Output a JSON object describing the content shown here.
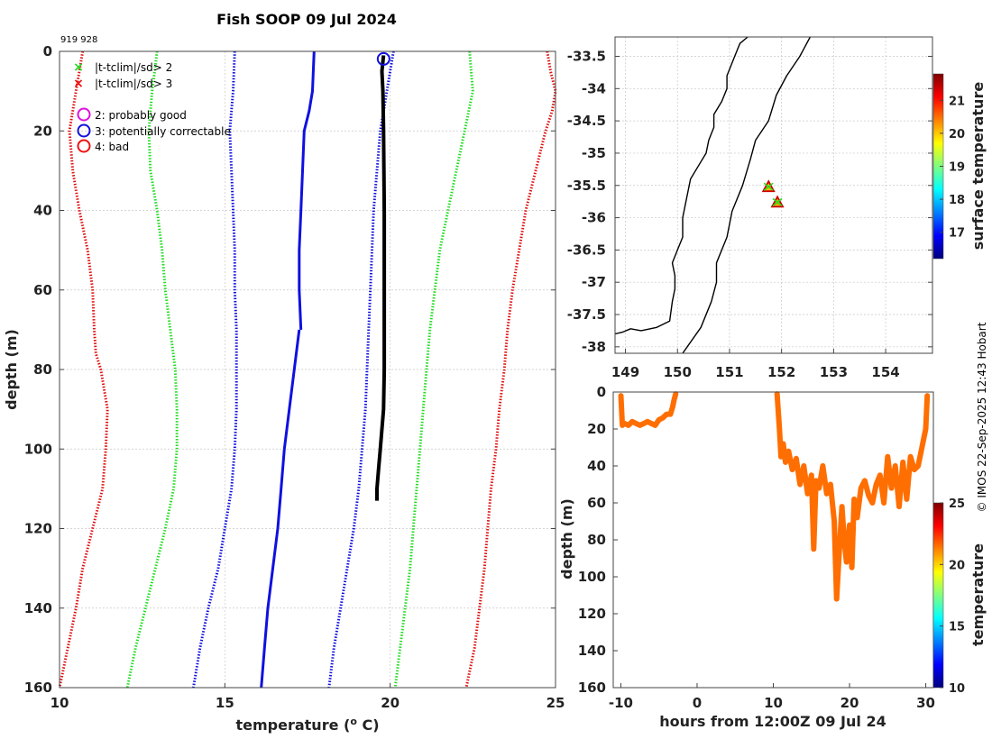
{
  "figure": {
    "title": "Fish SOOP 09 Jul 2024",
    "id_label": "919 928",
    "credit": "© IMOS 22-Sep-2025 12:43 Hobart"
  },
  "legend": {
    "items": [
      {
        "symbol": "x",
        "color": "#22dd22",
        "label": "|t-tclim|/sd> 2"
      },
      {
        "symbol": "x",
        "color": "#ee1111",
        "label": "|t-tclim|/sd> 3"
      },
      {
        "symbol": "o",
        "color": "#dd11dd",
        "label": "2: probably good"
      },
      {
        "symbol": "o",
        "color": "#1111dd",
        "label": "3: potentially correctable"
      },
      {
        "symbol": "o",
        "color": "#ee1111",
        "label": "4: bad"
      }
    ]
  },
  "colors": {
    "red": "#e01010",
    "green": "#22dd22",
    "blue": "#1010e0",
    "black": "#000000",
    "yellow": "#e6f01a",
    "grid": "#c8c8c8",
    "axis": "#444444"
  },
  "chart_data": [
    {
      "type": "line",
      "name": "profile",
      "title": "Fish SOOP 09 Jul 2024",
      "xlabel": "temperature (",
      "xlabel_sup": "o",
      "xlabel_tail": " C)",
      "ylabel": "depth (m)",
      "xlim": [
        10,
        25
      ],
      "ylim": [
        160,
        0
      ],
      "xticks": [
        10,
        15,
        20,
        25
      ],
      "yticks": [
        0,
        20,
        40,
        60,
        80,
        100,
        120,
        140,
        160
      ],
      "grid": true,
      "series": [
        {
          "name": "clim -3sd",
          "style": "dotted",
          "color": "red",
          "depth": [
            0,
            5,
            10,
            20,
            30,
            40,
            50,
            60,
            70,
            76,
            80,
            90,
            100,
            110,
            120,
            130,
            140,
            150,
            160
          ],
          "temp": [
            10.7,
            10.6,
            10.5,
            10.3,
            10.4,
            10.6,
            10.85,
            11.0,
            11.05,
            11.1,
            11.25,
            11.45,
            11.4,
            11.3,
            11.0,
            10.7,
            10.5,
            10.25,
            10.0
          ]
        },
        {
          "name": "clim -2sd",
          "style": "dotted",
          "color": "green",
          "depth": [
            0,
            10,
            20,
            30,
            40,
            50,
            60,
            70,
            80,
            90,
            100,
            110,
            120,
            130,
            140,
            150,
            160
          ],
          "temp": [
            12.95,
            12.8,
            12.7,
            12.75,
            12.95,
            13.1,
            13.2,
            13.35,
            13.5,
            13.55,
            13.55,
            13.45,
            13.2,
            12.9,
            12.6,
            12.3,
            12.05
          ]
        },
        {
          "name": "clim -1sd",
          "style": "dotted",
          "color": "blue",
          "depth": [
            0,
            10,
            20,
            30,
            40,
            50,
            60,
            70,
            80,
            90,
            100,
            110,
            120,
            130,
            140,
            150,
            160
          ],
          "temp": [
            15.3,
            15.25,
            15.15,
            15.2,
            15.25,
            15.3,
            15.3,
            15.35,
            15.35,
            15.35,
            15.3,
            15.2,
            15.0,
            14.8,
            14.5,
            14.25,
            14.05
          ]
        },
        {
          "name": "clim mean",
          "style": "solid",
          "color": "blue",
          "depth": [
            0,
            10,
            15,
            20,
            30,
            40,
            50,
            60,
            70
          ],
          "temp": [
            17.7,
            17.65,
            17.55,
            17.4,
            17.35,
            17.3,
            17.25,
            17.25,
            17.3
          ]
        },
        {
          "name": "clim mean deep",
          "style": "solid",
          "color": "blue",
          "depth": [
            70,
            80,
            90,
            100,
            110,
            120,
            130,
            140,
            150,
            160
          ],
          "temp": [
            17.25,
            17.1,
            16.95,
            16.8,
            16.7,
            16.6,
            16.45,
            16.3,
            16.2,
            16.1
          ]
        },
        {
          "name": "clim +1sd",
          "style": "dotted",
          "color": "blue",
          "depth": [
            0,
            10,
            20,
            30,
            40,
            50,
            60,
            70,
            80,
            90,
            100,
            110,
            120,
            130,
            140,
            150,
            160
          ],
          "temp": [
            20.1,
            19.9,
            19.7,
            19.6,
            19.5,
            19.45,
            19.4,
            19.35,
            19.3,
            19.25,
            19.15,
            19.05,
            18.9,
            18.7,
            18.5,
            18.3,
            18.15
          ]
        },
        {
          "name": "clim +2sd",
          "style": "dotted",
          "color": "green",
          "depth": [
            0,
            5,
            10,
            20,
            30,
            40,
            50,
            60,
            70,
            80,
            90,
            100,
            110,
            120,
            130,
            140,
            150,
            160
          ],
          "temp": [
            22.4,
            22.45,
            22.5,
            22.25,
            22.0,
            21.75,
            21.5,
            21.35,
            21.2,
            21.1,
            21.0,
            20.9,
            20.8,
            20.7,
            20.6,
            20.45,
            20.3,
            20.15
          ]
        },
        {
          "name": "clim +3sd",
          "style": "dotted",
          "color": "red",
          "depth": [
            0,
            5,
            10,
            15,
            20,
            30,
            40,
            50,
            60,
            70,
            80,
            90,
            100,
            110,
            120,
            130,
            140,
            150,
            160
          ],
          "temp": [
            24.75,
            24.85,
            25.0,
            24.9,
            24.7,
            24.4,
            24.1,
            23.9,
            23.7,
            23.55,
            23.45,
            23.3,
            23.2,
            23.05,
            22.95,
            22.85,
            22.7,
            22.55,
            22.3
          ]
        },
        {
          "name": "observed",
          "style": "solid",
          "color": "black",
          "depth": [
            1,
            5,
            10,
            20,
            40,
            60,
            80,
            90,
            92,
            95,
            100,
            105,
            110,
            113
          ],
          "temp": [
            19.8,
            19.75,
            19.78,
            19.8,
            19.82,
            19.82,
            19.82,
            19.8,
            19.78,
            19.75,
            19.7,
            19.65,
            19.6,
            19.6
          ]
        }
      ],
      "flag_markers": [
        {
          "flag": "3: potentially correctable",
          "temp": 19.8,
          "depth": 1
        }
      ]
    },
    {
      "type": "scatter",
      "name": "map",
      "xlim": [
        148.8,
        154.9
      ],
      "ylim": [
        -38.1,
        -33.2
      ],
      "xticks": [
        149,
        150,
        151,
        152,
        153,
        154
      ],
      "yticks": [
        -33.5,
        -34,
        -34.5,
        -35,
        -35.5,
        -36,
        -36.5,
        -37,
        -37.5,
        -38
      ],
      "ytick_labels": [
        "-33.5",
        "-34",
        "-34.5",
        "-35",
        "-35.5",
        "-36",
        "-36.5",
        "-37",
        "-37.5",
        "-38"
      ],
      "grid": true,
      "points": [
        {
          "lon": 151.75,
          "lat": -35.52,
          "surface_temperature": 20.1
        },
        {
          "lon": 151.92,
          "lat": -35.76,
          "surface_temperature": 20.2
        }
      ],
      "colorbar": {
        "label": "surface temperature",
        "range": [
          16.2,
          21.8
        ],
        "ticks": [
          17,
          18,
          19,
          20,
          21
        ]
      },
      "coastline": {
        "lon": [
          148.8,
          148.95,
          149.1,
          149.3,
          149.6,
          149.85,
          149.9,
          149.95,
          149.95,
          149.9,
          150.0,
          150.1,
          150.1,
          150.15,
          150.2,
          150.25,
          150.4,
          150.55,
          150.6,
          150.7,
          150.7,
          150.85,
          150.95,
          150.95,
          151.05,
          151.1,
          151.15,
          151.2,
          151.35
        ],
        "lat": [
          -37.8,
          -37.77,
          -37.72,
          -37.75,
          -37.7,
          -37.6,
          -37.3,
          -37.1,
          -36.9,
          -36.7,
          -36.5,
          -36.3,
          -36.0,
          -35.8,
          -35.6,
          -35.4,
          -35.2,
          -35.0,
          -34.8,
          -34.6,
          -34.4,
          -34.2,
          -34.0,
          -33.8,
          -33.6,
          -33.5,
          -33.4,
          -33.3,
          -33.2
        ]
      },
      "shelf": {
        "lon": [
          150.1,
          150.45,
          150.65,
          150.75,
          150.75,
          150.95,
          151.05,
          151.25,
          151.4,
          151.5,
          151.75,
          151.9,
          152.1,
          152.35,
          152.55
        ],
        "lat": [
          -38.1,
          -37.7,
          -37.3,
          -37.0,
          -36.7,
          -36.3,
          -35.9,
          -35.5,
          -35.1,
          -34.8,
          -34.5,
          -34.1,
          -33.8,
          -33.5,
          -33.2
        ]
      }
    },
    {
      "type": "scatter",
      "name": "depth-time",
      "xlabel": "hours from 12:00Z 09 Jul 24",
      "ylabel": "depth (m)",
      "xlim": [
        -11,
        31
      ],
      "ylim": [
        160,
        0
      ],
      "xticks": [
        -10,
        0,
        10,
        20,
        30
      ],
      "yticks": [
        0,
        20,
        40,
        60,
        80,
        100,
        120,
        140,
        160
      ],
      "grid": false,
      "colorbar": {
        "label": "temperature",
        "range": [
          10,
          25
        ],
        "ticks": [
          10,
          15,
          20,
          25
        ]
      },
      "track_segments": [
        {
          "hours": [
            -10,
            -9.8,
            -9.5,
            -9,
            -8.5,
            -8,
            -7.5,
            -7,
            -6.5,
            -6,
            -5.5,
            -5,
            -4.5,
            -4,
            -3.5,
            -3.2,
            -3,
            -2.8
          ],
          "depth": [
            2,
            18,
            17,
            18,
            16,
            17,
            18,
            17,
            16,
            17,
            18,
            15,
            14,
            12,
            12,
            8,
            4,
            1
          ]
        },
        {
          "hours": [
            10.5,
            10.8,
            11,
            11.3,
            11.6,
            12,
            12.5,
            13,
            13.5,
            14,
            14.5,
            15,
            15.3,
            15.6,
            16,
            16.5,
            17,
            17.5,
            18,
            18.3,
            18.6,
            19,
            19.3,
            19.6,
            20,
            20.3,
            20.6,
            21,
            21.5,
            22,
            22.5,
            23,
            23.5,
            24,
            24.5,
            25,
            25.5,
            26,
            26.5,
            27,
            27.5,
            28,
            28.5,
            29,
            29.5,
            30,
            30.2
          ],
          "depth": [
            1,
            20,
            35,
            28,
            38,
            32,
            42,
            36,
            50,
            40,
            55,
            45,
            85,
            48,
            52,
            40,
            55,
            50,
            70,
            112,
            90,
            62,
            80,
            92,
            72,
            95,
            58,
            68,
            52,
            48,
            56,
            60,
            50,
            45,
            60,
            35,
            52,
            40,
            62,
            38,
            58,
            35,
            42,
            40,
            30,
            20,
            2
          ]
        }
      ],
      "track_temperature": 21.5
    }
  ]
}
